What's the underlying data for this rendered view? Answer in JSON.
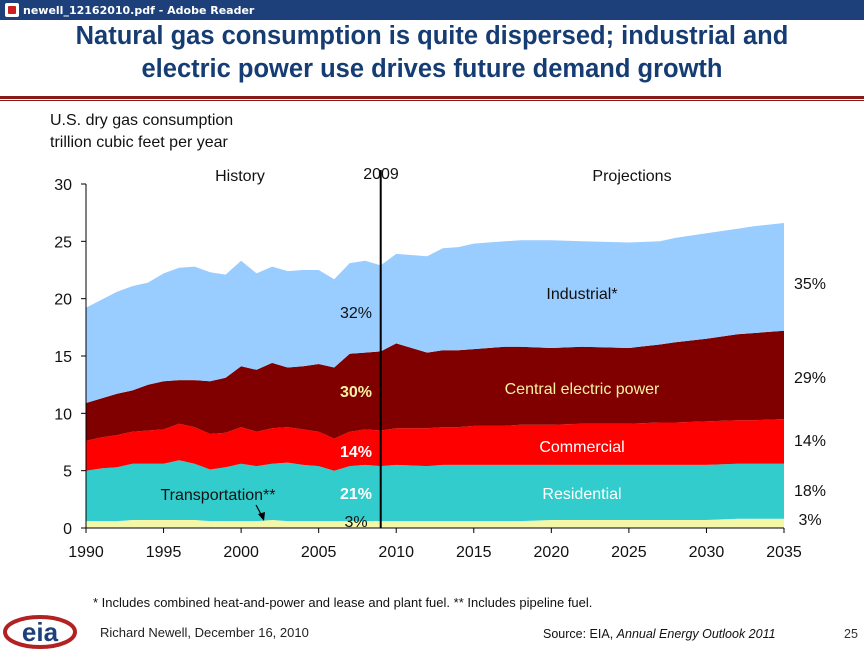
{
  "window": {
    "title": "newell_12162010.pdf - Adobe Reader",
    "icon": "acrobat-icon"
  },
  "slide": {
    "title_line1": "Natural gas consumption is quite dispersed; industrial and",
    "title_line2": "electric power use drives future demand growth",
    "footnote": "* Includes combined heat-and-power and lease and plant fuel.  ** Includes pipeline fuel.",
    "author": "Richard Newell, December 16, 2010",
    "source_prefix": "Source:  EIA, ",
    "source_title": "Annual Energy Outlook 2011",
    "page_number": "25",
    "logo_text": "eia"
  },
  "colors": {
    "accent": "#153c73",
    "rule": "#8a1a1a",
    "transportation": "#f5f7a8",
    "residential": "#33cccc",
    "commercial": "#ff0000",
    "electric": "#800000",
    "industrial": "#99ccff"
  },
  "chart_data": {
    "type": "area",
    "stacked": true,
    "ylabel_line1": "U.S. dry gas consumption",
    "ylabel_line2": "trillion cubic feet per year",
    "xlim": [
      1990,
      2035
    ],
    "ylim": [
      0,
      30
    ],
    "xticks": [
      1990,
      1995,
      2000,
      2005,
      2010,
      2015,
      2020,
      2025,
      2030,
      2035
    ],
    "yticks": [
      0,
      5,
      10,
      15,
      20,
      25,
      30
    ],
    "divider_year": 2009,
    "divider_label": "2009",
    "history_label": "History",
    "projections_label": "Projections",
    "x": [
      1990,
      1991,
      1992,
      1993,
      1994,
      1995,
      1996,
      1997,
      1998,
      1999,
      2000,
      2001,
      2002,
      2003,
      2004,
      2005,
      2006,
      2007,
      2008,
      2009,
      2010,
      2012,
      2013,
      2014,
      2015,
      2017,
      2018,
      2020,
      2022,
      2025,
      2027,
      2028,
      2030,
      2032,
      2033,
      2035
    ],
    "series": [
      {
        "name": "Transportation**",
        "key": "transportation",
        "values": [
          0.6,
          0.6,
          0.6,
          0.7,
          0.7,
          0.7,
          0.7,
          0.7,
          0.6,
          0.6,
          0.6,
          0.6,
          0.7,
          0.6,
          0.6,
          0.6,
          0.6,
          0.6,
          0.6,
          0.6,
          0.6,
          0.6,
          0.6,
          0.6,
          0.6,
          0.6,
          0.6,
          0.7,
          0.7,
          0.7,
          0.7,
          0.7,
          0.7,
          0.8,
          0.8,
          0.8
        ]
      },
      {
        "name": "Residential",
        "key": "residential",
        "values": [
          4.4,
          4.6,
          4.7,
          4.9,
          4.9,
          4.9,
          5.2,
          4.9,
          4.5,
          4.7,
          5.0,
          4.8,
          4.9,
          5.1,
          4.9,
          4.8,
          4.4,
          4.8,
          4.9,
          4.8,
          4.9,
          4.8,
          4.9,
          4.9,
          4.9,
          4.9,
          4.9,
          4.8,
          4.8,
          4.8,
          4.8,
          4.8,
          4.8,
          4.8,
          4.8,
          4.8
        ]
      },
      {
        "name": "Commercial",
        "key": "commercial",
        "values": [
          2.6,
          2.7,
          2.8,
          2.8,
          2.9,
          3.0,
          3.2,
          3.2,
          3.1,
          3.0,
          3.2,
          3.0,
          3.1,
          3.1,
          3.1,
          3.0,
          2.8,
          3.0,
          3.1,
          3.1,
          3.2,
          3.3,
          3.3,
          3.3,
          3.4,
          3.4,
          3.5,
          3.5,
          3.6,
          3.6,
          3.7,
          3.7,
          3.8,
          3.8,
          3.8,
          3.9
        ]
      },
      {
        "name": "Central electric power",
        "key": "electric",
        "values": [
          3.3,
          3.4,
          3.6,
          3.6,
          4.0,
          4.2,
          3.8,
          4.1,
          4.6,
          4.8,
          5.3,
          5.4,
          5.7,
          5.2,
          5.5,
          5.9,
          6.2,
          6.8,
          6.7,
          6.9,
          7.4,
          6.6,
          6.7,
          6.7,
          6.7,
          6.9,
          6.8,
          6.7,
          6.7,
          6.6,
          6.8,
          7.0,
          7.2,
          7.5,
          7.6,
          7.7
        ]
      },
      {
        "name": "Industrial*",
        "key": "industrial",
        "values": [
          8.3,
          8.6,
          8.9,
          9.1,
          8.9,
          9.4,
          9.8,
          9.9,
          9.5,
          9.0,
          9.2,
          8.4,
          8.4,
          8.4,
          8.4,
          8.2,
          7.7,
          7.9,
          8.0,
          7.5,
          7.8,
          8.4,
          8.9,
          9.0,
          9.2,
          9.2,
          9.3,
          9.4,
          9.2,
          9.2,
          9.0,
          9.1,
          9.2,
          9.2,
          9.3,
          9.4
        ]
      }
    ],
    "labels_history": [
      "32%",
      "30%",
      "14%",
      "21%",
      "3%"
    ],
    "labels_projection": [
      "35%",
      "29%",
      "14%",
      "18%",
      "3%"
    ],
    "series_labels": {
      "industrial": "Industrial*",
      "electric": "Central electric power",
      "commercial": "Commercial",
      "residential": "Residential",
      "transportation": "Transportation**"
    }
  }
}
